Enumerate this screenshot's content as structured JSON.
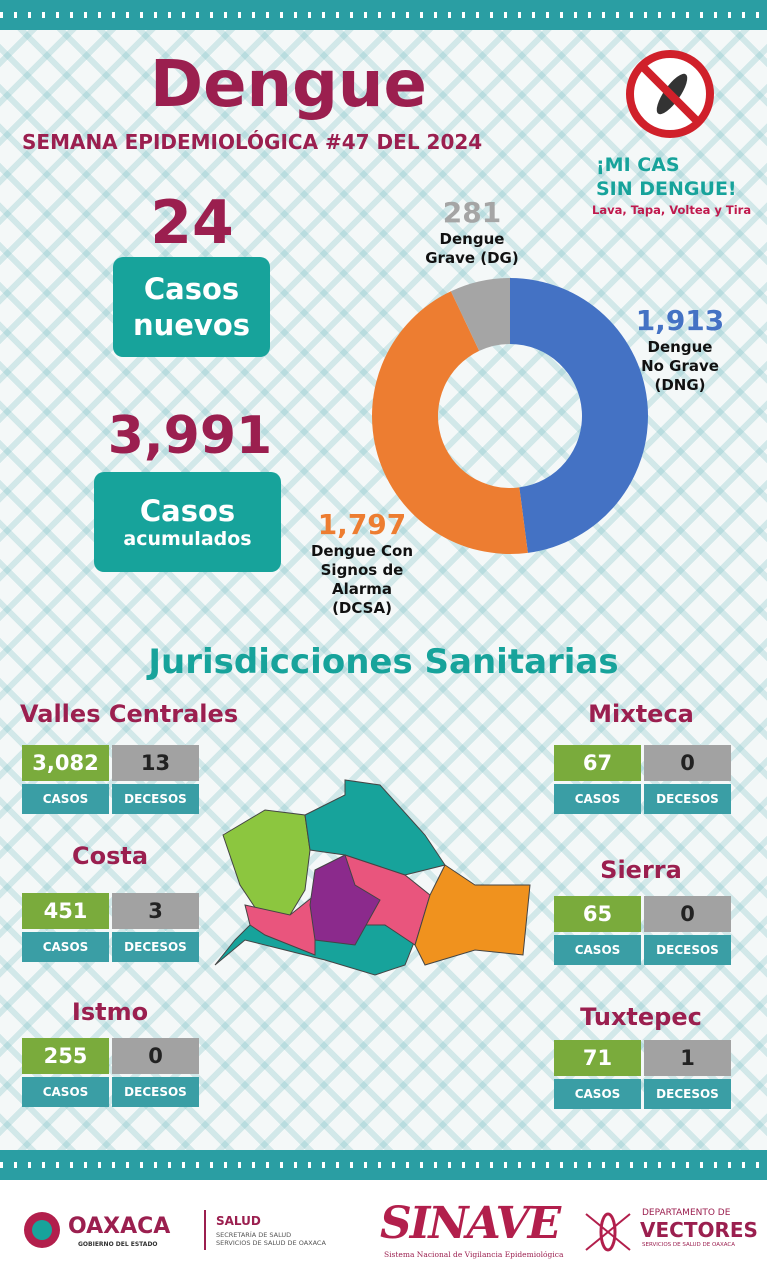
{
  "header": {
    "title": "Dengue",
    "subtitle": "SEMANA EPIDEMIOLÓGICA #47 DEL 2024",
    "logo_line1": "¡MI CAS",
    "logo_line2": "SIN DENGUE!",
    "logo_tagline": "Lava, Tapa, Voltea y Tira"
  },
  "stats": {
    "new_cases": "24",
    "new_cases_label": "Casos nuevos",
    "cumulative_cases": "3,991",
    "cumulative_label_1": "Casos",
    "cumulative_label_2": "acumulados"
  },
  "chart_data": {
    "type": "donut",
    "categories": [
      "Dengue No Grave (DNG)",
      "Dengue Con Signos de Alarma (DCSA)",
      "Dengue Grave (DG)"
    ],
    "values": [
      1913,
      1797,
      281
    ],
    "value_labels": [
      "1,913",
      "1,797",
      "281"
    ],
    "colors": [
      "#4472c4",
      "#ed7d31",
      "#a5a5a5"
    ]
  },
  "section_title": "Jurisdicciones Sanitarias",
  "labels": {
    "casos": "CASOS",
    "decesos": "DECESOS"
  },
  "jurisdictions": [
    {
      "name": "Valles Centrales",
      "casos": "3,082",
      "decesos": "13"
    },
    {
      "name": "Costa",
      "casos": "451",
      "decesos": "3"
    },
    {
      "name": "Istmo",
      "casos": "255",
      "decesos": "0"
    },
    {
      "name": "Mixteca",
      "casos": "67",
      "decesos": "0"
    },
    {
      "name": "Sierra",
      "casos": "65",
      "decesos": "0"
    },
    {
      "name": "Tuxtepec",
      "casos": "71",
      "decesos": "1"
    }
  ],
  "footer": {
    "oaxaca": "OAXACA",
    "gobierno": "GOBIERNO DEL ESTADO",
    "salud": "SALUD",
    "secretaria": "SECRETARÍA DE SALUD",
    "servicios": "SERVICIOS DE SALUD DE OAXACA",
    "sinave": "SINAVE",
    "sinave_full": "Sistema Nacional de Vigilancia Epidemiológica",
    "depto": "DEPARTAMENTO DE",
    "vectores": "VECTORES",
    "vectores_sub": "SERVICIOS DE SALUD DE OAXACA"
  }
}
